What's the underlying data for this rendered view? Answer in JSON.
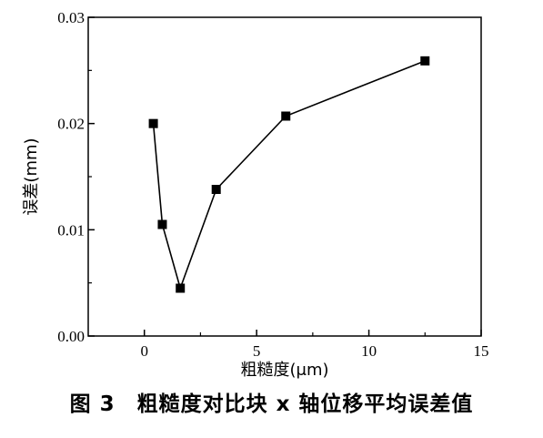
{
  "chart_data": {
    "type": "line",
    "xlabel": "粗糙度(μm)",
    "ylabel": "误差(mm)",
    "xlim": [
      -2.5,
      15
    ],
    "ylim": [
      0,
      0.03
    ],
    "xticks": [
      0,
      5,
      10,
      15
    ],
    "xtick_labels": [
      "0",
      "5",
      "10",
      "15"
    ],
    "yticks": [
      0,
      0.01,
      0.02,
      0.03
    ],
    "ytick_labels": [
      "0.00",
      "0.01",
      "0.02",
      "0.03"
    ],
    "grid": false,
    "marker": "square",
    "series": [
      {
        "x": [
          0.4,
          0.8,
          1.6,
          3.2,
          6.3,
          12.5
        ],
        "y": [
          0.02,
          0.0105,
          0.0045,
          0.0138,
          0.0207,
          0.0259
        ]
      }
    ]
  },
  "caption": "图 3　粗糙度对比块 x 轴位移平均误差值",
  "colors": {
    "line": "#000000",
    "marker": "#000000"
  }
}
